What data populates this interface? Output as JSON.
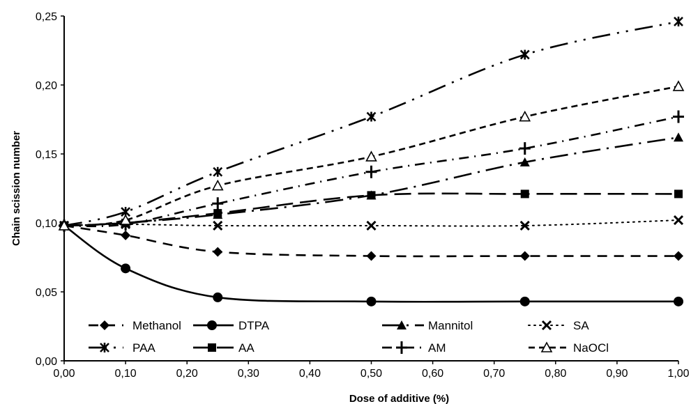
{
  "chart_data": {
    "type": "line",
    "title": "",
    "xlabel": "Dose of additive (%)",
    "ylabel": "Chain scission number",
    "x": [
      0.0,
      0.1,
      0.25,
      0.5,
      0.75,
      1.0
    ],
    "xlim": [
      0.0,
      1.0
    ],
    "ylim": [
      0.0,
      0.25
    ],
    "x_ticks": [
      "0,00",
      "0,10",
      "0,20",
      "0,30",
      "0,40",
      "0,50",
      "0,60",
      "0,70",
      "0,80",
      "0,90",
      "1,00"
    ],
    "x_tick_values": [
      0.0,
      0.1,
      0.2,
      0.3,
      0.4,
      0.5,
      0.6,
      0.7,
      0.8,
      0.9,
      1.0
    ],
    "y_ticks": [
      "0,00",
      "0,05",
      "0,10",
      "0,15",
      "0,20",
      "0,25"
    ],
    "y_tick_values": [
      0.0,
      0.05,
      0.1,
      0.15,
      0.2,
      0.25
    ],
    "grid": false,
    "legend_position": "bottom-inside",
    "series": [
      {
        "name": "Methanol",
        "marker": "diamond",
        "dash": "dashed",
        "values": [
          0.098,
          0.091,
          0.079,
          0.076,
          0.076,
          0.076
        ]
      },
      {
        "name": "DTPA",
        "marker": "circle",
        "dash": "solid",
        "values": [
          0.098,
          0.067,
          0.046,
          0.043,
          0.043,
          0.043
        ]
      },
      {
        "name": "Mannitol",
        "marker": "triangle-filled",
        "dash": "long-dash-dot",
        "values": [
          0.098,
          0.1,
          0.106,
          0.12,
          0.144,
          0.162
        ]
      },
      {
        "name": "SA",
        "marker": "x",
        "dash": "dotted",
        "values": [
          0.098,
          0.099,
          0.098,
          0.098,
          0.098,
          0.102
        ]
      },
      {
        "name": "PAA",
        "marker": "asterisk",
        "dash": "long-dash-dot-dot",
        "values": [
          0.098,
          0.108,
          0.137,
          0.177,
          0.222,
          0.246
        ]
      },
      {
        "name": "AA",
        "marker": "square",
        "dash": "long-dash",
        "values": [
          0.098,
          0.1,
          0.107,
          0.12,
          0.121,
          0.121
        ]
      },
      {
        "name": "AM",
        "marker": "plus",
        "dash": "dash-dot",
        "values": [
          0.098,
          0.099,
          0.114,
          0.137,
          0.154,
          0.177
        ]
      },
      {
        "name": "NaOCl",
        "marker": "triangle-open",
        "dash": "short-dash",
        "values": [
          0.098,
          0.102,
          0.127,
          0.148,
          0.177,
          0.199
        ]
      }
    ]
  }
}
